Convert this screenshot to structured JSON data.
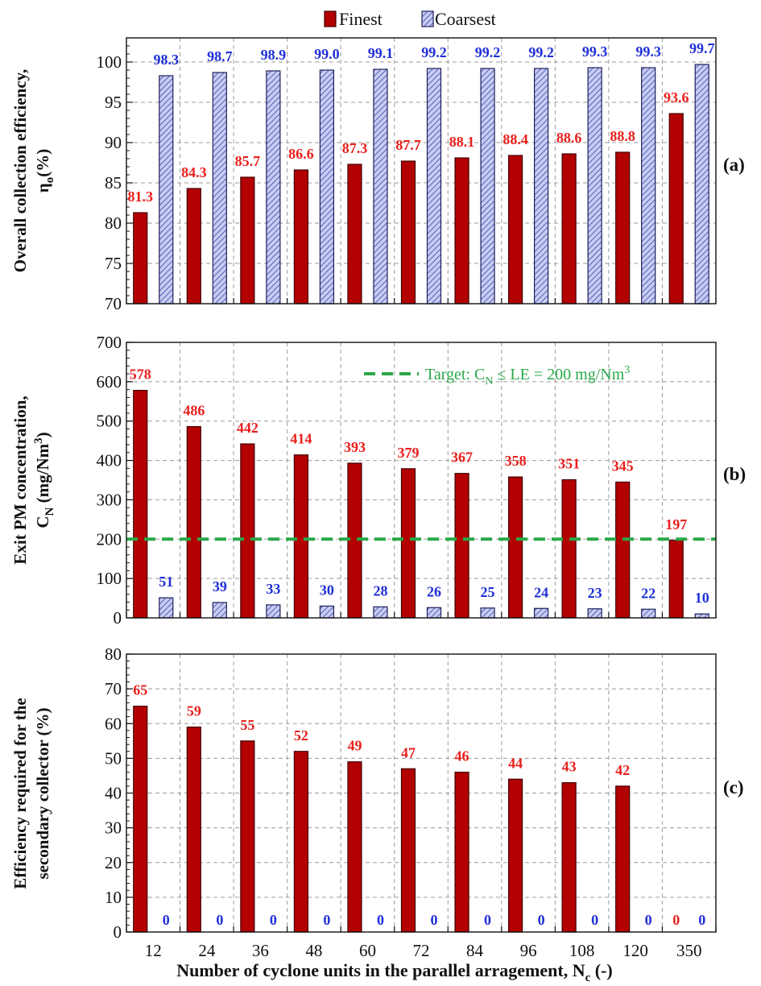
{
  "legend": {
    "finest": "Finest",
    "coarsest": "Coarsest"
  },
  "colors": {
    "finest_fill": "#b30000",
    "finest_stroke": "#400000",
    "finest_label": "#e8201c",
    "coarsest_fill": "#c7cdf2",
    "coarsest_stroke": "#1f1f5a",
    "coarsest_label": "#1f2fd6",
    "target_line": "#2aa84a",
    "grid": "#9a9a9a"
  },
  "xlabel": {
    "main": "Number of cyclone units in the parallel arragement, N",
    "sub": "c",
    "tail": " (-)"
  },
  "chart_data": [
    {
      "type": "bar",
      "panel": "(a)",
      "ylabel": [
        "Overall collection efficiency,",
        "η",
        "o",
        "(%)"
      ],
      "ylim": [
        70,
        103
      ],
      "yticks": [
        70,
        75,
        80,
        85,
        90,
        95,
        100
      ],
      "categories": [
        "12",
        "24",
        "36",
        "48",
        "60",
        "72",
        "84",
        "96",
        "108",
        "120",
        "350"
      ],
      "series": [
        {
          "name": "Finest",
          "values": [
            81.3,
            84.3,
            85.7,
            86.6,
            87.3,
            87.7,
            88.1,
            88.4,
            88.6,
            88.8,
            93.6
          ],
          "labels": [
            "81.3",
            "84.3",
            "85.7",
            "86.6",
            "87.3",
            "87.7",
            "88.1",
            "88.4",
            "88.6",
            "88.8",
            "93.6"
          ]
        },
        {
          "name": "Coarsest",
          "values": [
            98.3,
            98.7,
            98.9,
            99.0,
            99.1,
            99.2,
            99.2,
            99.2,
            99.3,
            99.3,
            99.7
          ],
          "labels": [
            "98.3",
            "98.7",
            "98.9",
            "99.0",
            "99.1",
            "99.2",
            "99.2",
            "99.2",
            "99.3",
            "99.3",
            "99.7"
          ]
        }
      ],
      "grid": true
    },
    {
      "type": "bar",
      "panel": "(b)",
      "ylabel": [
        "Exit PM concentration,",
        "C",
        "N",
        " (mg/Nm",
        "3",
        ")"
      ],
      "ylim": [
        0,
        700
      ],
      "yticks": [
        0,
        100,
        200,
        300,
        400,
        500,
        600,
        700
      ],
      "categories": [
        "12",
        "24",
        "36",
        "48",
        "60",
        "72",
        "84",
        "96",
        "108",
        "120",
        "350"
      ],
      "series": [
        {
          "name": "Finest",
          "values": [
            578,
            486,
            442,
            414,
            393,
            379,
            367,
            358,
            351,
            345,
            197
          ],
          "labels": [
            "578",
            "486",
            "442",
            "414",
            "393",
            "379",
            "367",
            "358",
            "351",
            "345",
            "197"
          ]
        },
        {
          "name": "Coarsest",
          "values": [
            51,
            39,
            33,
            30,
            28,
            26,
            25,
            24,
            23,
            22,
            10
          ],
          "labels": [
            "51",
            "39",
            "33",
            "30",
            "28",
            "26",
            "25",
            "24",
            "23",
            "22",
            "10"
          ]
        }
      ],
      "reference_line": {
        "value": 200,
        "label_parts": [
          "Target: C",
          "N",
          " ≤ LE = 200 mg/Nm",
          "3"
        ]
      },
      "grid": true
    },
    {
      "type": "bar",
      "panel": "(c)",
      "ylabel": [
        "Efficiency required for the",
        "secondary collector (%)"
      ],
      "ylim": [
        0,
        80
      ],
      "yticks": [
        0,
        10,
        20,
        30,
        40,
        50,
        60,
        70,
        80
      ],
      "categories": [
        "12",
        "24",
        "36",
        "48",
        "60",
        "72",
        "84",
        "96",
        "108",
        "120",
        "350"
      ],
      "series": [
        {
          "name": "Finest",
          "values": [
            65,
            59,
            55,
            52,
            49,
            47,
            46,
            44,
            43,
            42,
            0
          ],
          "labels": [
            "65",
            "59",
            "55",
            "52",
            "49",
            "47",
            "46",
            "44",
            "43",
            "42",
            "0"
          ]
        },
        {
          "name": "Coarsest",
          "values": [
            0,
            0,
            0,
            0,
            0,
            0,
            0,
            0,
            0,
            0,
            0
          ],
          "labels": [
            "0",
            "0",
            "0",
            "0",
            "0",
            "0",
            "0",
            "0",
            "0",
            "0",
            "0"
          ]
        }
      ],
      "grid": true
    }
  ]
}
